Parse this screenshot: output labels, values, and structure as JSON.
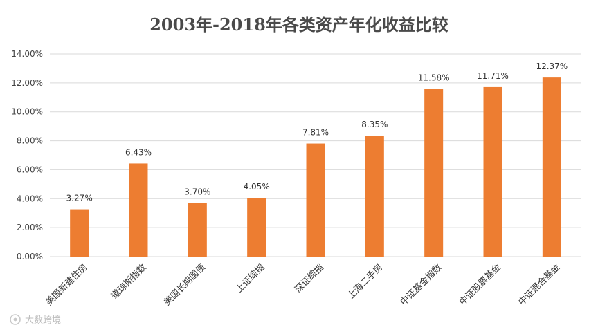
{
  "chart_data": {
    "type": "bar",
    "title": "2003年-2018年各类资产年化收益比较",
    "categories": [
      "美国新建住房",
      "道琼斯指数",
      "美国长期国债",
      "上证综指",
      "深证综指",
      "上海二手房",
      "中证基金指数",
      "中证股票基金",
      "中证混合基金"
    ],
    "values": [
      3.27,
      6.43,
      3.7,
      4.05,
      7.81,
      8.35,
      11.58,
      11.71,
      12.37
    ],
    "data_labels": [
      "3.27%",
      "6.43%",
      "3.70%",
      "4.05%",
      "7.81%",
      "8.35%",
      "11.58%",
      "11.71%",
      "12.37%"
    ],
    "yticks": [
      "0.00%",
      "2.00%",
      "4.00%",
      "6.00%",
      "8.00%",
      "10.00%",
      "12.00%",
      "14.00%"
    ],
    "ylim": [
      0,
      14
    ],
    "grid": true,
    "bar_color": "#ed7d31"
  },
  "watermark": "大数跨境"
}
